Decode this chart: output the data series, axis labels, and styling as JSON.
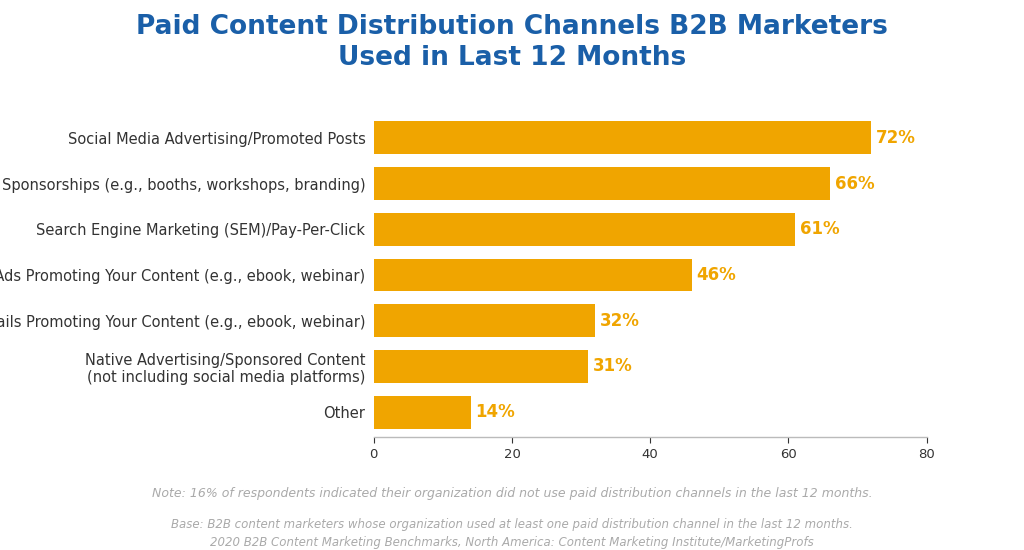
{
  "title_line1": "Paid Content Distribution Channels B2B Marketers",
  "title_line2": "Used in Last 12 Months",
  "title_color": "#1a5fa8",
  "title_fontsize": 19,
  "categories": [
    "Other",
    "Native Advertising/Sponsored Content\n(not including social media platforms)",
    "Partner Emails Promoting Your Content (e.g., ebook, webinar)",
    "Banner Ads Promoting Your Content (e.g., ebook, webinar)",
    "Search Engine Marketing (SEM)/Pay-Per-Click",
    "Sponsorships (e.g., booths, workshops, branding)",
    "Social Media Advertising/Promoted Posts"
  ],
  "values": [
    14,
    31,
    32,
    46,
    61,
    66,
    72
  ],
  "bar_color": "#f0a500",
  "label_color": "#f0a500",
  "label_fontsize": 12,
  "tick_label_fontsize": 10.5,
  "xlim": [
    0,
    80
  ],
  "xticks": [
    0,
    20,
    40,
    60,
    80
  ],
  "note_text": "Note: 16% of respondents indicated their organization did not use paid distribution channels in the last 12 months.",
  "base_line1": "Base: B2B content marketers whose organization used at least one paid distribution channel in the last 12 months.",
  "base_line2": "2020 B2B Content Marketing Benchmarks, North America: Content Marketing Institute/MarketingProfs",
  "footnote_color": "#aaaaaa",
  "footnote_fontsize": 9,
  "bg_color": "#ffffff",
  "bar_height": 0.72,
  "axis_label_color": "#333333",
  "spine_color": "#bbbbbb"
}
